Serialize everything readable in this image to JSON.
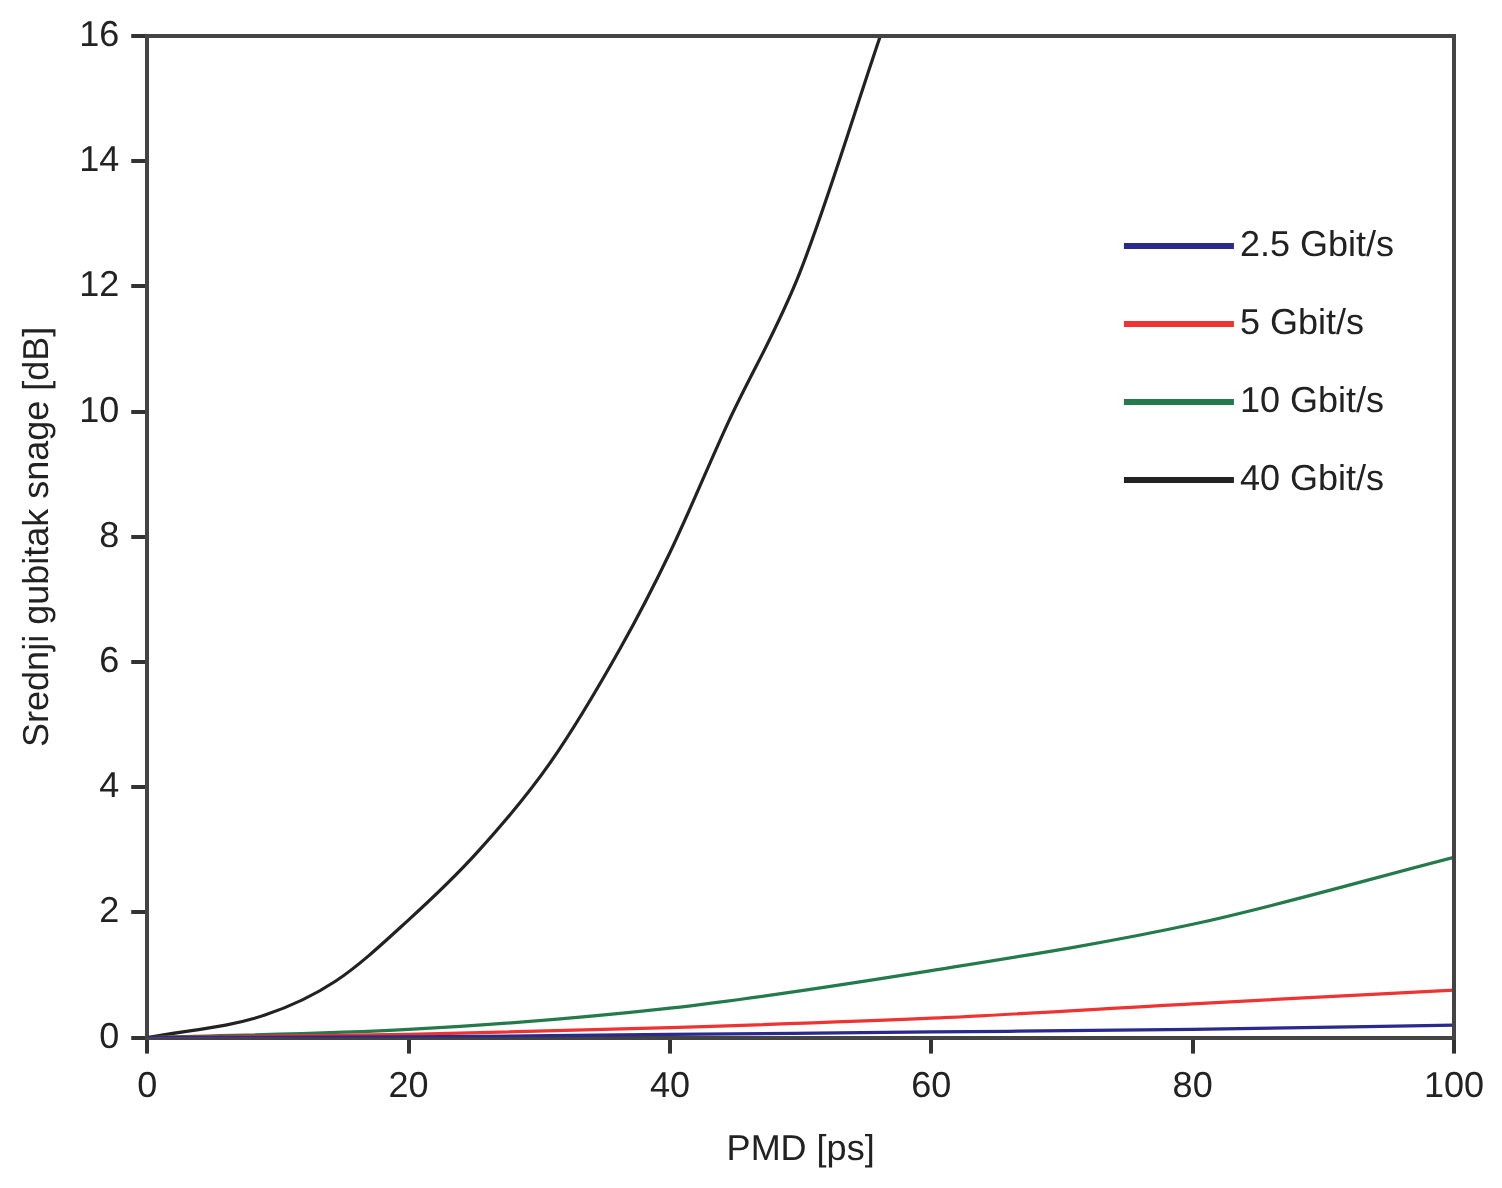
{
  "chart_data": {
    "type": "line",
    "xlabel": "PMD [ps]",
    "ylabel": "Srednji gubitak snage [dB]",
    "xlim": [
      0,
      100
    ],
    "xticks": [
      0,
      20,
      40,
      60,
      80,
      100
    ],
    "ylim": [
      0,
      16
    ],
    "yticks": [
      0,
      2,
      4,
      6,
      8,
      10,
      12,
      14,
      16
    ],
    "grid": false,
    "legend": "top right",
    "marker": "none",
    "line_style": "solid",
    "series": [
      {
        "name": "2.5 Gbit/s",
        "color": "#2a2a8c",
        "x": [
          0,
          20,
          40,
          60,
          80,
          100
        ],
        "values": [
          0,
          0.01,
          0.05,
          0.09,
          0.13,
          0.2
        ]
      },
      {
        "name": "5 Gbit/s",
        "color": "#ee3333",
        "x": [
          0,
          20,
          40,
          60,
          80,
          100
        ],
        "values": [
          0,
          0.05,
          0.16,
          0.31,
          0.54,
          0.76
        ]
      },
      {
        "name": "10 Gbit/s",
        "color": "#237a4a",
        "x": [
          0,
          20,
          40,
          60,
          80,
          100
        ],
        "values": [
          0,
          0.13,
          0.47,
          1.07,
          1.81,
          2.88
        ]
      },
      {
        "name": "40 Gbit/s",
        "color": "#222222",
        "x": [
          0,
          9,
          14.4,
          20,
          25.3,
          30.8,
          36.2,
          40,
          44.4,
          49.9,
          56.1
        ],
        "values": [
          0,
          0.36,
          0.9,
          1.88,
          2.97,
          4.38,
          6.22,
          7.75,
          9.8,
          12.2,
          16
        ]
      }
    ]
  }
}
